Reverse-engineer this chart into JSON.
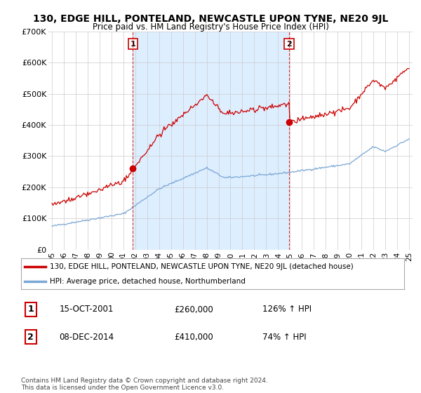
{
  "title": "130, EDGE HILL, PONTELAND, NEWCASTLE UPON TYNE, NE20 9JL",
  "subtitle": "Price paid vs. HM Land Registry's House Price Index (HPI)",
  "ylim": [
    0,
    700000
  ],
  "yticks": [
    0,
    100000,
    200000,
    300000,
    400000,
    500000,
    600000,
    700000
  ],
  "ytick_labels": [
    "£0",
    "£100K",
    "£200K",
    "£300K",
    "£400K",
    "£500K",
    "£600K",
    "£700K"
  ],
  "hpi_color": "#7ba7d4",
  "price_color": "#cc0000",
  "vline_color": "#cc0000",
  "shade_color": "#ddeeff",
  "grid_color": "#cccccc",
  "background_color": "#ffffff",
  "sale1_date": 2001.79,
  "sale1_price": 260000,
  "sale2_date": 2014.92,
  "sale2_price": 410000,
  "legend_line1": "130, EDGE HILL, PONTELAND, NEWCASTLE UPON TYNE, NE20 9JL (detached house)",
  "legend_line2": "HPI: Average price, detached house, Northumberland",
  "annotation1_num": "1",
  "annotation1_date": "15-OCT-2001",
  "annotation1_price": "£260,000",
  "annotation1_hpi": "126% ↑ HPI",
  "annotation2_num": "2",
  "annotation2_date": "08-DEC-2014",
  "annotation2_price": "£410,000",
  "annotation2_hpi": "74% ↑ HPI",
  "footer": "Contains HM Land Registry data © Crown copyright and database right 2024.\nThis data is licensed under the Open Government Licence v3.0."
}
